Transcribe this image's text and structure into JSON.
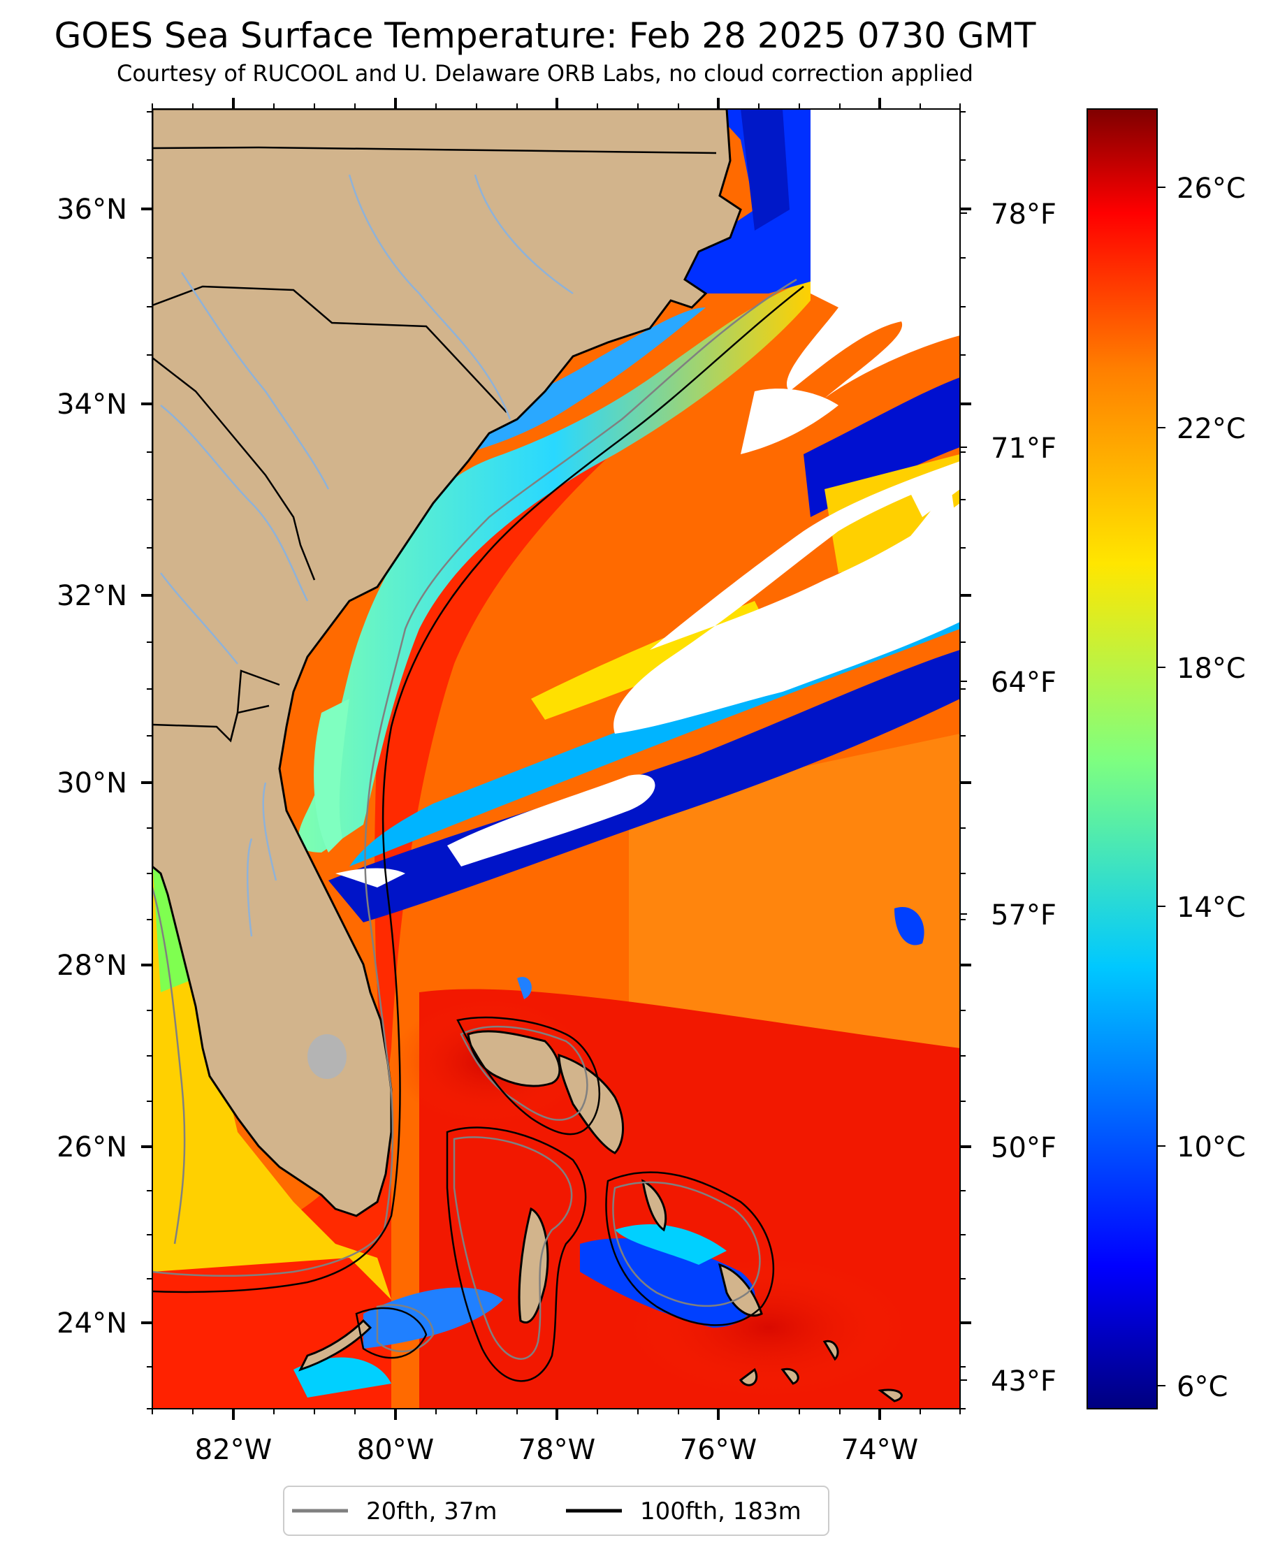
{
  "title": "GOES Sea Surface Temperature: Feb 28 2025 0730 GMT",
  "subtitle": "Courtesy of RUCOOL and U. Delaware ORB Labs, no cloud correction applied",
  "axes": {
    "lat_labels": [
      "36°N",
      "34°N",
      "32°N",
      "30°N",
      "28°N",
      "26°N",
      "24°N"
    ],
    "lon_labels": [
      "82°W",
      "80°W",
      "78°W",
      "76°W",
      "74°W"
    ],
    "fahrenheit_labels": [
      "78°F",
      "71°F",
      "64°F",
      "57°F",
      "50°F",
      "43°F"
    ]
  },
  "colorbar": {
    "labels": [
      "26°C",
      "22°C",
      "18°C",
      "14°C",
      "10°C",
      "6°C"
    ],
    "colormap": "jet"
  },
  "legend": {
    "items": [
      {
        "label": "20fth, 37m",
        "color": "#808080"
      },
      {
        "label": "100fth, 183m",
        "color": "#000000"
      }
    ]
  },
  "colors": {
    "land": "#d2b48c",
    "cloud": "#ffffff",
    "river": "#8fb2d8",
    "contour_20fth": "#808080",
    "contour_100fth": "#000000"
  }
}
